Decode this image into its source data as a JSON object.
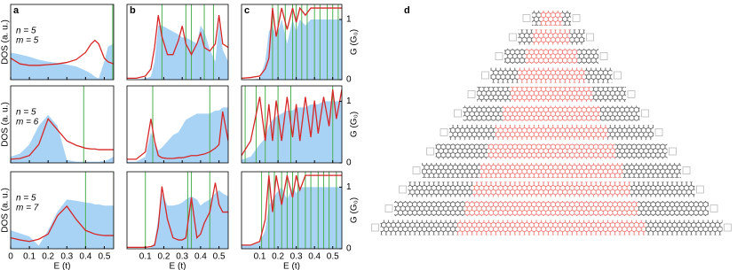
{
  "chart_data": [
    {
      "type": "line",
      "panel": "a",
      "annotation": [
        "n = 5",
        "m = 5"
      ],
      "ylabel": "DOS (a. u.)",
      "xlim": [
        0,
        0.55
      ],
      "xticks": [
        0,
        0.1,
        0.2,
        0.3,
        0.4,
        0.5
      ],
      "xtick_labels": false,
      "ylim": [
        0,
        1.05
      ],
      "y2lim": [
        0,
        1.25
      ],
      "x": [
        0,
        0.05,
        0.1,
        0.15,
        0.2,
        0.25,
        0.3,
        0.35,
        0.4,
        0.43,
        0.45,
        0.47,
        0.5,
        0.52,
        0.55
      ],
      "series": [
        {
          "color": "#d62728",
          "values": [
            0.3,
            0.22,
            0.2,
            0.2,
            0.21,
            0.22,
            0.24,
            0.28,
            0.38,
            0.5,
            0.55,
            0.5,
            0.3,
            0.25,
            0.22
          ]
        },
        {
          "color": "#a9d3f5",
          "axis": "y2",
          "values": [
            0.45,
            0.42,
            0.38,
            0.33,
            0.3,
            0.28,
            0.25,
            0.22,
            0.15,
            0.1,
            0.05,
            0.02,
            0.3,
            0.55,
            0.6
          ]
        }
      ],
      "vlines": {
        "color": "#4caf50",
        "x": [
          0.545
        ]
      }
    },
    {
      "type": "line",
      "panel": "b",
      "xlim": [
        0,
        0.55
      ],
      "xticks": [
        0.1,
        0.2,
        0.3,
        0.4,
        0.5
      ],
      "xtick_labels": false,
      "ylim": [
        0,
        1.05
      ],
      "y2lim": [
        0,
        1.25
      ],
      "x": [
        0,
        0.05,
        0.1,
        0.13,
        0.15,
        0.17,
        0.19,
        0.22,
        0.25,
        0.28,
        0.3,
        0.32,
        0.35,
        0.38,
        0.4,
        0.42,
        0.45,
        0.48,
        0.5,
        0.52,
        0.55
      ],
      "series": [
        {
          "color": "#d62728",
          "values": [
            0.02,
            0.02,
            0.05,
            0.15,
            0.45,
            0.9,
            0.6,
            0.35,
            0.35,
            0.55,
            0.75,
            0.5,
            0.35,
            0.5,
            0.65,
            0.45,
            0.4,
            0.5,
            0.9,
            0.5,
            0.45
          ]
        },
        {
          "color": "#a9d3f5",
          "axis": "y2",
          "values": [
            0,
            0,
            0.02,
            0.05,
            0.3,
            0.9,
            0.9,
            0.85,
            0.8,
            0.75,
            0.7,
            0.7,
            0.65,
            0.6,
            0.9,
            0.8,
            0.5,
            0.3,
            0.95,
            0.5,
            0.3
          ]
        }
      ],
      "vlines": {
        "color": "#4caf50",
        "x": [
          0.19,
          0.32,
          0.35,
          0.42,
          0.47
        ]
      }
    },
    {
      "type": "line",
      "panel": "c",
      "y2label": "G (G₀)",
      "xlim": [
        0,
        0.55
      ],
      "xticks": [
        0.1,
        0.2,
        0.3,
        0.4,
        0.5
      ],
      "xtick_labels": false,
      "ylim": [
        0,
        1.05
      ],
      "y2lim": [
        0,
        1.25
      ],
      "y2ticks": [
        0,
        1
      ],
      "x": [
        0,
        0.05,
        0.1,
        0.13,
        0.15,
        0.17,
        0.19,
        0.22,
        0.25,
        0.28,
        0.3,
        0.32,
        0.35,
        0.38,
        0.4,
        0.42,
        0.45,
        0.48,
        0.5,
        0.52,
        0.55
      ],
      "series": [
        {
          "color": "#d62728",
          "values": [
            0.02,
            0.03,
            0.05,
            0.15,
            0.3,
            1,
            0.6,
            1,
            0.7,
            1,
            0.8,
            1,
            0.9,
            1,
            1,
            1,
            1,
            1,
            1,
            1,
            1
          ]
        },
        {
          "color": "#a9d3f5",
          "axis": "y2",
          "values": [
            0,
            0,
            0.02,
            0.3,
            0.8,
            0.9,
            0.7,
            1,
            0.6,
            1,
            0.8,
            1,
            0.9,
            1,
            1,
            1,
            1,
            1,
            1,
            1,
            1
          ]
        }
      ],
      "vlines": {
        "color": "#4caf50",
        "x": [
          0.17,
          0.2,
          0.24,
          0.28,
          0.3,
          0.33,
          0.36,
          0.4,
          0.43,
          0.47,
          0.5,
          0.53
        ]
      }
    },
    {
      "type": "line",
      "annotation": [
        "n = 5",
        "m = 6"
      ],
      "ylabel": "DOS (a. u.)",
      "xlim": [
        0,
        0.55
      ],
      "xticks": [
        0,
        0.1,
        0.2,
        0.3,
        0.4,
        0.5
      ],
      "xtick_labels": false,
      "ylim": [
        0,
        1.05
      ],
      "y2lim": [
        0,
        1.25
      ],
      "x": [
        0,
        0.05,
        0.1,
        0.15,
        0.2,
        0.25,
        0.3,
        0.35,
        0.4,
        0.43,
        0.45,
        0.47,
        0.5,
        0.52,
        0.55
      ],
      "series": [
        {
          "color": "#d62728",
          "values": [
            0.05,
            0.06,
            0.1,
            0.25,
            0.6,
            0.45,
            0.3,
            0.24,
            0.2,
            0.19,
            0.19,
            0.18,
            0.18,
            0.18,
            0.18
          ]
        },
        {
          "color": "#a9d3f5",
          "axis": "y2",
          "values": [
            0.1,
            0.15,
            0.3,
            0.6,
            0.78,
            0.6,
            0.05,
            0.02,
            0.02,
            0.02,
            0.02,
            0.02,
            0.03,
            0.05,
            0.1
          ]
        }
      ],
      "vlines": {
        "color": "#4caf50",
        "x": [
          0.39
        ]
      }
    },
    {
      "type": "line",
      "xlim": [
        0,
        0.55
      ],
      "xticks": [
        0.1,
        0.2,
        0.3,
        0.4,
        0.5
      ],
      "xtick_labels": false,
      "ylim": [
        0,
        1.05
      ],
      "y2lim": [
        0,
        1.25
      ],
      "x": [
        0,
        0.05,
        0.1,
        0.13,
        0.15,
        0.17,
        0.19,
        0.22,
        0.25,
        0.28,
        0.3,
        0.32,
        0.35,
        0.38,
        0.4,
        0.42,
        0.45,
        0.48,
        0.5,
        0.52,
        0.55
      ],
      "series": [
        {
          "color": "#d62728",
          "values": [
            0.05,
            0.05,
            0.15,
            0.6,
            0.3,
            0.1,
            0.07,
            0.06,
            0.06,
            0.07,
            0.07,
            0.08,
            0.1,
            0.1,
            0.11,
            0.12,
            0.15,
            0.2,
            0.25,
            0.7,
            0.3
          ]
        },
        {
          "color": "#a9d3f5",
          "axis": "y2",
          "values": [
            0.02,
            0.02,
            0.1,
            0.5,
            0.3,
            0.2,
            0.25,
            0.35,
            0.45,
            0.5,
            0.6,
            0.7,
            0.75,
            0.8,
            0.8,
            0.8,
            0.8,
            0.85,
            0.85,
            0.9,
            0.9
          ]
        }
      ],
      "vlines": {
        "color": "#4caf50",
        "x": [
          0.14,
          0.45
        ]
      }
    },
    {
      "type": "line",
      "y2label": "G (G₀)",
      "xlim": [
        0,
        0.55
      ],
      "xticks": [
        0.1,
        0.2,
        0.3,
        0.4,
        0.5
      ],
      "xtick_labels": false,
      "ylim": [
        0,
        1.05
      ],
      "y2lim": [
        0,
        1.25
      ],
      "y2ticks": [
        0,
        1
      ],
      "x": [
        0,
        0.05,
        0.1,
        0.13,
        0.15,
        0.17,
        0.19,
        0.22,
        0.25,
        0.28,
        0.3,
        0.32,
        0.35,
        0.38,
        0.4,
        0.42,
        0.45,
        0.48,
        0.5,
        0.52,
        0.55
      ],
      "series": [
        {
          "color": "#d62728",
          "values": [
            0.1,
            0.3,
            0.9,
            0.3,
            0.8,
            0.3,
            0.85,
            0.3,
            0.9,
            0.35,
            0.8,
            0.3,
            0.9,
            0.35,
            0.85,
            0.4,
            0.9,
            0.5,
            1,
            0.6,
            1
          ]
        },
        {
          "color": "#a9d3f5",
          "axis": "y2",
          "values": [
            0.05,
            0.1,
            0.3,
            0.4,
            0.6,
            0.7,
            0.75,
            0.8,
            0.85,
            0.85,
            0.9,
            0.9,
            0.9,
            0.95,
            0.95,
            0.95,
            1,
            1,
            1,
            1,
            1
          ]
        }
      ],
      "vlines": {
        "color": "#4caf50",
        "x": [
          0.02,
          0.08,
          0.13,
          0.2,
          0.27,
          0.5
        ]
      }
    },
    {
      "type": "line",
      "annotation": [
        "n = 5",
        "m = 7"
      ],
      "ylabel": "DOS (a. u.)",
      "xlabel": "E (t)",
      "xlim": [
        0,
        0.55
      ],
      "xticks": [
        0,
        0.1,
        0.2,
        0.3,
        0.4,
        0.5
      ],
      "xtick_labels": true,
      "ylim": [
        0,
        1.05
      ],
      "y2lim": [
        0,
        1.25
      ],
      "x": [
        0,
        0.05,
        0.1,
        0.15,
        0.2,
        0.25,
        0.3,
        0.35,
        0.4,
        0.43,
        0.45,
        0.47,
        0.5,
        0.52,
        0.55
      ],
      "series": [
        {
          "color": "#d62728",
          "values": [
            0.15,
            0.12,
            0.1,
            0.13,
            0.2,
            0.45,
            0.58,
            0.4,
            0.25,
            0.22,
            0.2,
            0.19,
            0.18,
            0.18,
            0.18
          ]
        },
        {
          "color": "#a9d3f5",
          "axis": "y2",
          "values": [
            0.3,
            0.25,
            0.2,
            0.05,
            0.3,
            0.6,
            0.8,
            0.78,
            0.75,
            0.74,
            0.72,
            0.72,
            0.7,
            0.7,
            0.7
          ]
        }
      ],
      "vlines": {
        "color": "#4caf50",
        "x": [
          0.4,
          0.55
        ]
      }
    },
    {
      "type": "line",
      "xlabel": "E (t)",
      "xlim": [
        0,
        0.55
      ],
      "xticks": [
        0.1,
        0.2,
        0.3,
        0.4,
        0.5
      ],
      "xtick_labels": true,
      "ylim": [
        0,
        1.05
      ],
      "y2lim": [
        0,
        1.25
      ],
      "x": [
        0,
        0.05,
        0.1,
        0.13,
        0.15,
        0.17,
        0.19,
        0.22,
        0.25,
        0.28,
        0.3,
        0.32,
        0.35,
        0.38,
        0.4,
        0.42,
        0.45,
        0.48,
        0.5,
        0.52,
        0.55
      ],
      "series": [
        {
          "color": "#d62728",
          "values": [
            0.02,
            0.02,
            0.02,
            0.03,
            0.05,
            0.3,
            0.85,
            0.4,
            0.15,
            0.12,
            0.12,
            0.15,
            0.7,
            0.15,
            0.2,
            0.35,
            0.5,
            0.9,
            0.6,
            0.5,
            0.5
          ]
        },
        {
          "color": "#a9d3f5",
          "axis": "y2",
          "values": [
            0,
            0,
            0,
            0.02,
            0.1,
            0.5,
            0.9,
            0.7,
            0.7,
            0.72,
            0.75,
            0.8,
            0.85,
            0.8,
            0.7,
            0.75,
            0.8,
            0.9,
            0.95,
            0.9,
            0.85
          ]
        }
      ],
      "vlines": {
        "color": "#4caf50",
        "x": [
          0.1,
          0.33,
          0.35,
          0.45
        ]
      }
    },
    {
      "type": "line",
      "y2label": "G (G₀)",
      "xlabel": "E (t)",
      "xlim": [
        0,
        0.55
      ],
      "xticks": [
        0.1,
        0.2,
        0.3,
        0.4,
        0.5
      ],
      "xtick_labels": true,
      "ylim": [
        0,
        1.05
      ],
      "y2lim": [
        0,
        1.25
      ],
      "y2ticks": [
        0,
        1
      ],
      "x": [
        0,
        0.05,
        0.1,
        0.13,
        0.15,
        0.17,
        0.19,
        0.22,
        0.25,
        0.28,
        0.3,
        0.32,
        0.35,
        0.38,
        0.4,
        0.42,
        0.45,
        0.48,
        0.5,
        0.52,
        0.55
      ],
      "series": [
        {
          "color": "#d62728",
          "values": [
            0.05,
            0.05,
            0.1,
            0.4,
            1,
            0.5,
            1,
            0.6,
            1,
            0.7,
            1,
            0.8,
            1,
            1,
            1,
            1,
            1,
            1,
            1,
            1,
            1
          ]
        },
        {
          "color": "#a9d3f5",
          "axis": "y2",
          "values": [
            0.05,
            0.05,
            0.1,
            0.3,
            0.7,
            0.8,
            0.9,
            1,
            0.8,
            1,
            0.9,
            1,
            1,
            1,
            1,
            1,
            1,
            1,
            1,
            1,
            1
          ]
        }
      ],
      "vlines": {
        "color": "#4caf50",
        "x": [
          0.11,
          0.15,
          0.18,
          0.22,
          0.25,
          0.28,
          0.31,
          0.35,
          0.38,
          0.42,
          0.45,
          0.48,
          0.52
        ]
      }
    }
  ],
  "diagram": {
    "label": "d"
  }
}
